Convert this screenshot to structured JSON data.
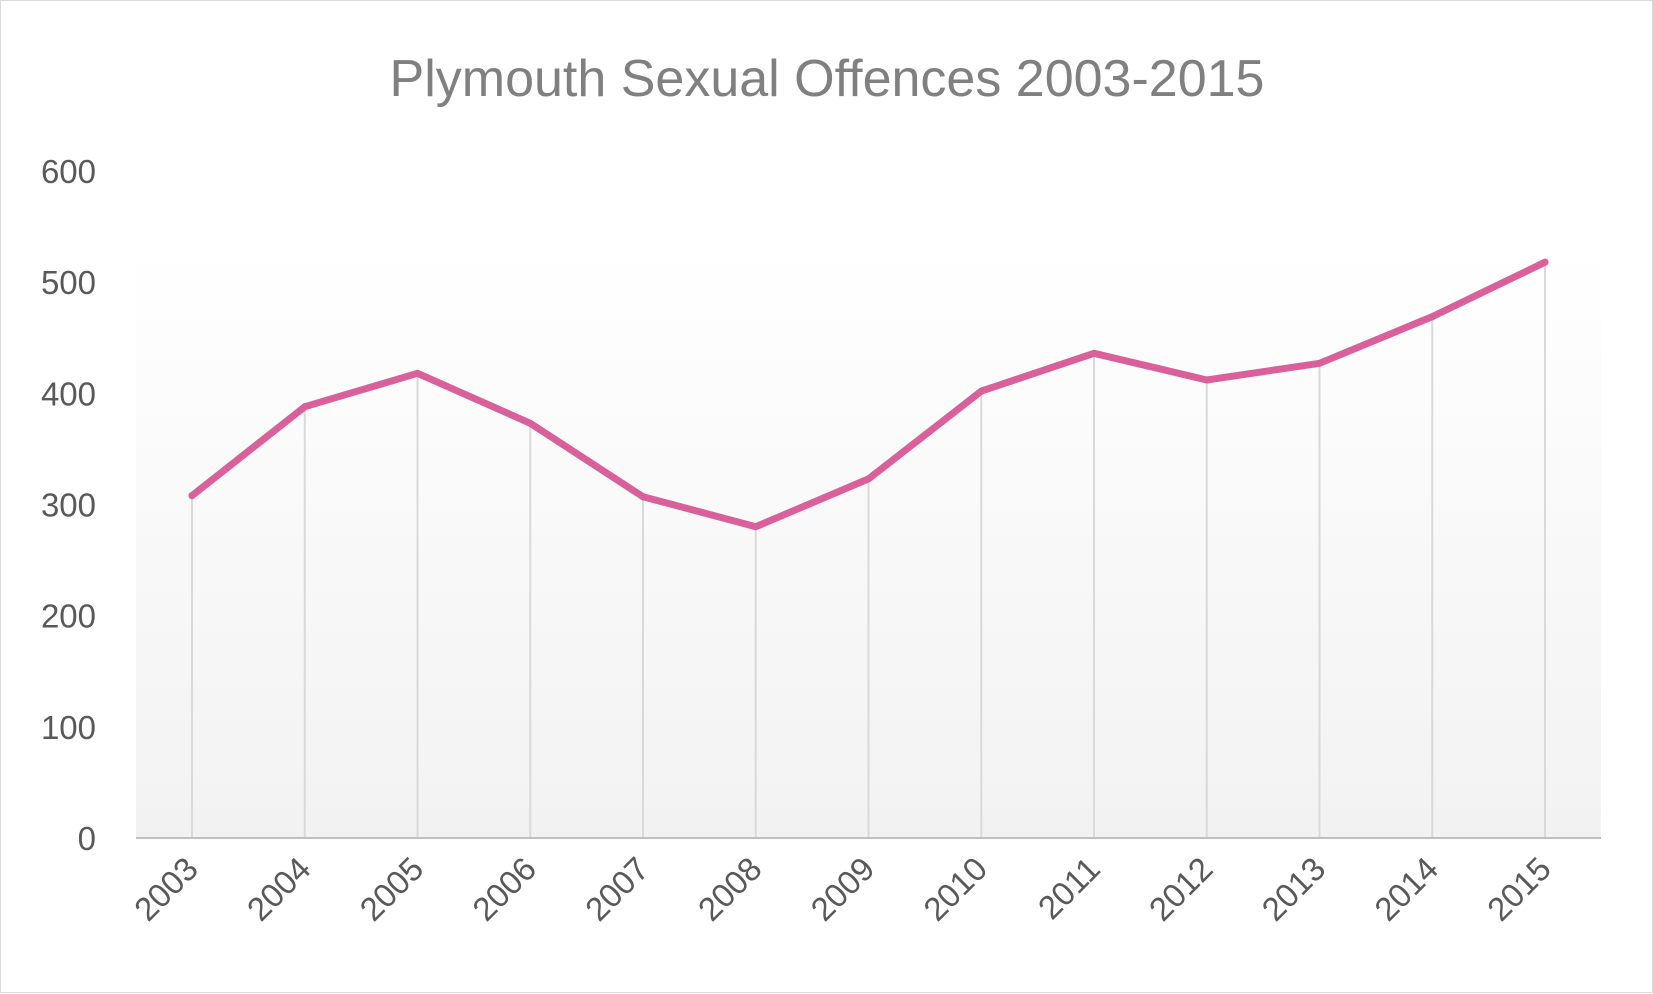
{
  "chart_data": {
    "type": "line",
    "title": "Plymouth Sexual Offences 2003-2015",
    "xlabel": "",
    "ylabel": "",
    "categories": [
      "2003",
      "2004",
      "2005",
      "2006",
      "2007",
      "2008",
      "2009",
      "2010",
      "2011",
      "2012",
      "2013",
      "2014",
      "2015"
    ],
    "series": [
      {
        "values": [
          308,
          388,
          418,
          373,
          307,
          280,
          323,
          402,
          436,
          412,
          427,
          469,
          518
        ]
      }
    ],
    "ylim": [
      0,
      600
    ],
    "yticks": [
      0,
      100,
      200,
      300,
      400,
      500,
      600
    ],
    "grid": "vertical drop lines at each category",
    "legend": "none",
    "colors": {
      "line": "#d9609a",
      "axis": "#bfbfbf",
      "gridline": "#d9d9d9",
      "title": "#808080",
      "tick_text": "#595959",
      "plot_gradient_top": "#ffffff",
      "plot_gradient_bottom": "#f2f2f2"
    }
  }
}
